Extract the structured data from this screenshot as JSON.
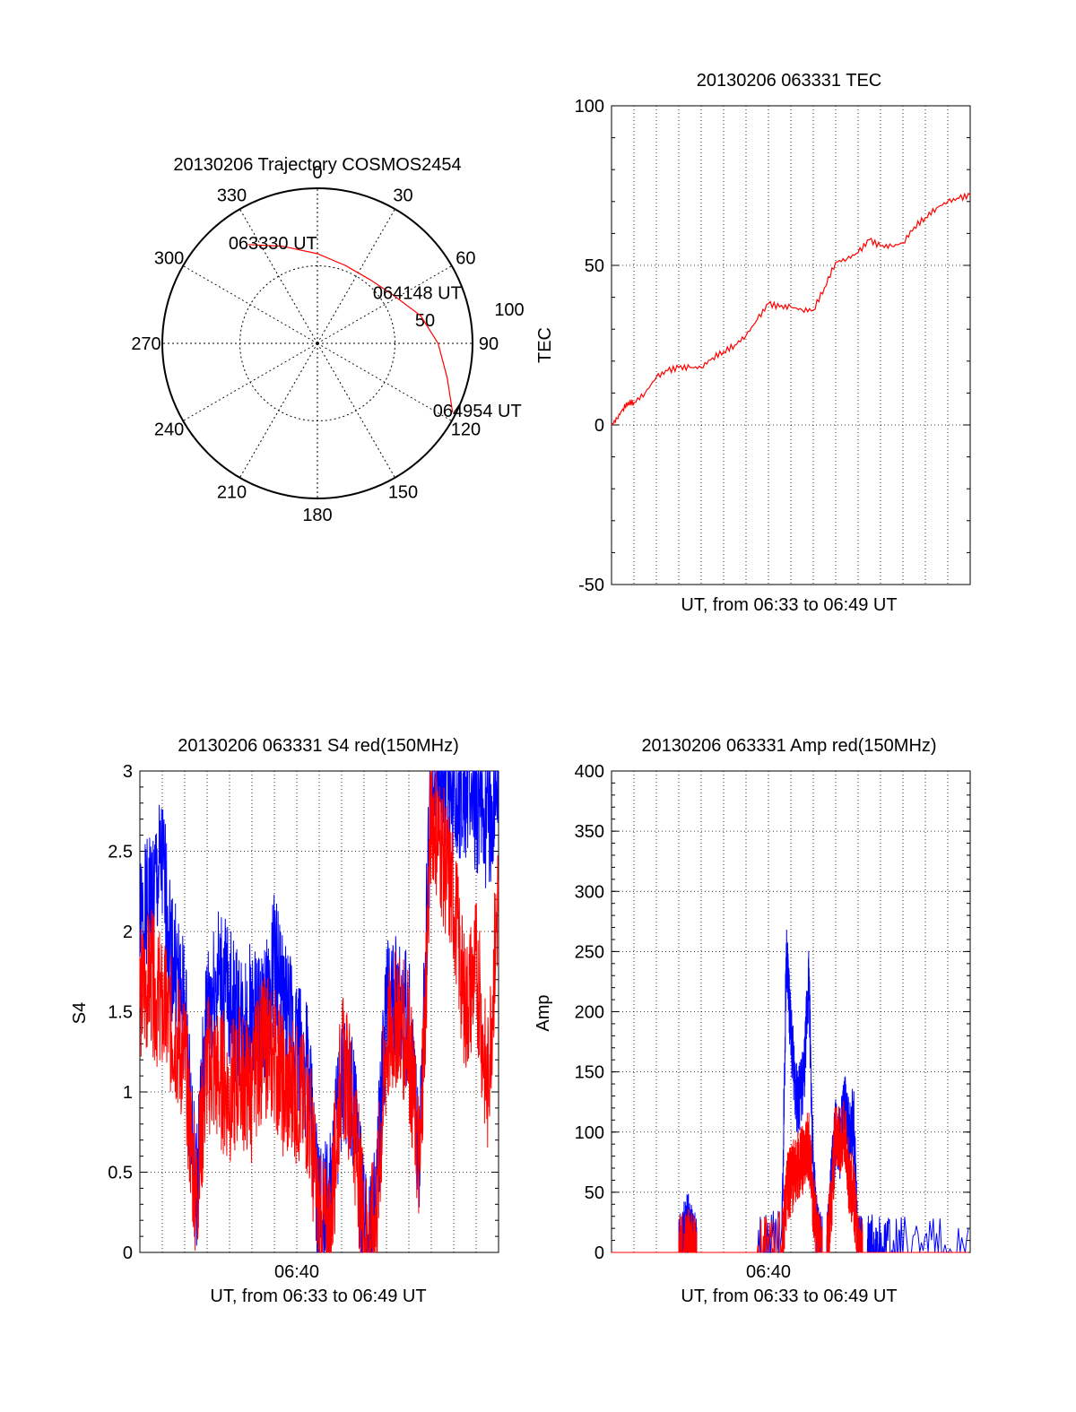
{
  "chart_data": [
    {
      "type": "polar",
      "title": "20130206 Trajectory COSMOS2454",
      "angle_labels": [
        "0",
        "30",
        "60",
        "90",
        "120",
        "150",
        "180",
        "210",
        "240",
        "270",
        "300",
        "330"
      ],
      "radial_labels": [
        "50",
        "100"
      ],
      "angle_direction": "clockwise from top",
      "radial_range": [
        0,
        100
      ],
      "grid": true,
      "series": [
        {
          "color": "#ff0000",
          "points": [
            {
              "azimuth": 325,
              "elevation": 20
            },
            {
              "azimuth": 340,
              "elevation": 30
            },
            {
              "azimuth": 0,
              "elevation": 38
            },
            {
              "azimuth": 20,
              "elevation": 42
            },
            {
              "azimuth": 40,
              "elevation": 42
            },
            {
              "azimuth": 57,
              "elevation": 38
            },
            {
              "azimuth": 75,
              "elevation": 28
            },
            {
              "azimuth": 90,
              "elevation": 20
            },
            {
              "azimuth": 105,
              "elevation": 12
            },
            {
              "azimuth": 117,
              "elevation": 2
            }
          ]
        }
      ],
      "annotations": [
        {
          "text": "063330 UT",
          "azimuth": 325,
          "elevation": 20
        },
        {
          "text": "064148 UT",
          "azimuth": 57,
          "elevation": 38
        },
        {
          "text": "064954 UT",
          "azimuth": 117,
          "elevation": 2
        }
      ]
    },
    {
      "type": "line",
      "title": "20130206 063331 TEC",
      "xlabel": "UT, from 06:33 to 06:49 UT",
      "ylabel": "TEC",
      "ylim": [
        -50,
        100
      ],
      "yticks": [
        "-50",
        "0",
        "50",
        "100"
      ],
      "grid": true,
      "series": [
        {
          "color": "#ff0000",
          "x": [
            0,
            0.25,
            0.5,
            0.75,
            1.0,
            1.5,
            2.0,
            2.5,
            3.0,
            3.5,
            4.0,
            4.5,
            5.0,
            5.5,
            6.0,
            6.5,
            7.0,
            7.5,
            8.0,
            8.5,
            9.0,
            9.5,
            10.0,
            10.5,
            11.0,
            11.5,
            12.0,
            12.5,
            13.0,
            13.5,
            14.0,
            14.5,
            15.0,
            15.5,
            16.0
          ],
          "y": [
            0,
            2,
            5,
            7,
            7,
            10,
            15,
            17,
            18,
            18,
            18,
            21,
            23,
            25,
            28,
            33,
            38,
            37,
            37,
            36,
            36,
            43,
            51,
            52,
            54,
            58,
            56,
            56,
            57,
            62,
            65,
            68,
            70,
            71,
            72
          ]
        }
      ]
    },
    {
      "type": "line",
      "title": "20130206 063331 S4 red(150MHz)",
      "xlabel": "UT, from 06:33 to 06:49 UT",
      "ylabel": "S4",
      "ylim": [
        0,
        3
      ],
      "yticks": [
        "0",
        "0.5",
        "1",
        "1.5",
        "2",
        "2.5",
        "3"
      ],
      "xticks": [
        {
          "label": "06:40",
          "x": 7
        }
      ],
      "xlim": [
        0,
        16
      ],
      "grid": true,
      "series": [
        {
          "color": "#0000ff",
          "x": [
            0,
            0.5,
            1.0,
            1.5,
            2.0,
            2.5,
            3.0,
            3.5,
            4.0,
            4.5,
            5.0,
            5.5,
            6.0,
            6.5,
            7.0,
            7.5,
            8.0,
            8.5,
            9.0,
            9.5,
            10.0,
            10.5,
            11.0,
            11.5,
            12.0,
            12.5,
            13.0,
            13.5,
            14.0,
            14.5,
            15.0,
            15.5,
            16.0
          ],
          "y": [
            2.0,
            2.2,
            2.4,
            1.8,
            1.5,
            0.3,
            1.5,
            1.7,
            1.6,
            1.4,
            1.5,
            1.4,
            1.8,
            1.5,
            1.3,
            1.1,
            0.2,
            0.3,
            1.1,
            1.0,
            0.1,
            0.2,
            1.5,
            1.6,
            1.4,
            0.6,
            3.0,
            3.0,
            2.8,
            2.9,
            2.8,
            2.7,
            2.9
          ]
        },
        {
          "color": "#ff0000",
          "x": [
            0,
            0.5,
            1.0,
            1.5,
            2.0,
            2.5,
            3.0,
            3.5,
            4.0,
            4.5,
            5.0,
            5.5,
            6.0,
            6.5,
            7.0,
            7.5,
            8.0,
            8.5,
            9.0,
            9.5,
            10.0,
            10.5,
            11.0,
            11.5,
            12.0,
            12.5,
            13.0,
            13.5,
            14.0,
            14.5,
            15.0,
            15.5,
            16.0
          ],
          "y": [
            1.6,
            1.7,
            1.5,
            1.4,
            1.2,
            0.3,
            1.2,
            1.1,
            1.0,
            1.1,
            1.0,
            1.3,
            1.2,
            1.0,
            1.0,
            0.9,
            0.15,
            0.15,
            1.2,
            0.9,
            0.1,
            0.15,
            1.3,
            1.5,
            1.3,
            0.5,
            2.8,
            2.5,
            2.2,
            1.5,
            1.8,
            1.0,
            2.3
          ]
        }
      ]
    },
    {
      "type": "line",
      "title": "20130206 063331 Amp red(150MHz)",
      "xlabel": "UT, from 06:33 to 06:49 UT",
      "ylabel": "Amp",
      "ylim": [
        0,
        400
      ],
      "yticks": [
        "0",
        "50",
        "100",
        "150",
        "200",
        "250",
        "300",
        "350",
        "400"
      ],
      "xticks": [
        {
          "label": "06:40",
          "x": 7
        }
      ],
      "xlim": [
        0,
        16
      ],
      "grid": true,
      "series": [
        {
          "color": "#0000ff",
          "x": [
            0,
            2.5,
            3.0,
            3.2,
            3.4,
            3.6,
            3.8,
            4.0,
            6.5,
            7.6,
            7.8,
            8.0,
            8.3,
            8.6,
            8.8,
            9.0,
            9.2,
            9.4,
            9.6,
            9.8,
            10.0,
            10.2,
            10.4,
            10.6,
            10.8,
            11.0,
            11.2,
            11.4,
            11.6,
            12.0,
            13.0,
            16.0
          ],
          "y": [
            0,
            0,
            0,
            12,
            22,
            8,
            0,
            0,
            0,
            10,
            250,
            180,
            120,
            150,
            230,
            60,
            10,
            0,
            0,
            60,
            100,
            90,
            120,
            100,
            110,
            2,
            0,
            0,
            2,
            0,
            1,
            0
          ]
        },
        {
          "color": "#ff0000",
          "x": [
            0,
            2.5,
            3.0,
            3.2,
            3.4,
            3.6,
            3.8,
            4.0,
            6.5,
            7.6,
            7.8,
            8.0,
            8.3,
            8.6,
            8.8,
            9.0,
            9.2,
            9.4,
            9.6,
            9.8,
            10.0,
            10.2,
            10.4,
            10.6,
            10.8,
            11.0,
            11.2,
            11.4,
            11.6,
            12.0,
            13.0,
            16.0
          ],
          "y": [
            0,
            0,
            0,
            5,
            8,
            3,
            0,
            0,
            0,
            5,
            50,
            60,
            70,
            80,
            90,
            40,
            5,
            0,
            0,
            40,
            100,
            90,
            100,
            60,
            50,
            2,
            0,
            0,
            0,
            0,
            0,
            0
          ]
        }
      ]
    }
  ]
}
